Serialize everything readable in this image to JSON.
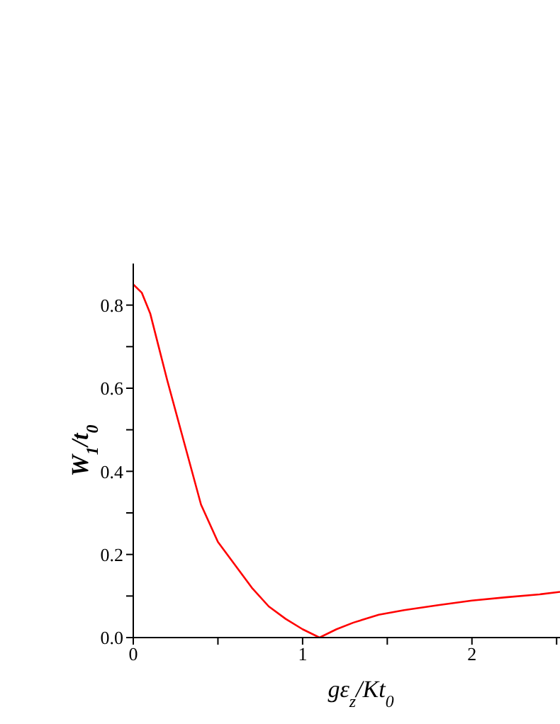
{
  "chart_data": {
    "type": "line",
    "xlabel": "gε$_{z}$/Kt$_{0}$",
    "ylabel": "W$_{1}$/t$_{0}$",
    "x": [
      0,
      0.05,
      0.1,
      0.15,
      0.2,
      0.3,
      0.4,
      0.5,
      0.6,
      0.7,
      0.8,
      0.9,
      1.0,
      1.1,
      1.2,
      1.3,
      1.45,
      1.6,
      1.8,
      2.0,
      2.2,
      2.4,
      2.52
    ],
    "series": [
      {
        "color": "#ff0000",
        "values": [
          0.85,
          0.83,
          0.78,
          0.7,
          0.62,
          0.47,
          0.32,
          0.23,
          0.175,
          0.12,
          0.075,
          0.045,
          0.02,
          0,
          0.02,
          0.036,
          0.055,
          0.066,
          0.078,
          0.089,
          0.097,
          0.104,
          0.11
        ]
      }
    ],
    "xlim": [
      0,
      2.52
    ],
    "ylim": [
      0,
      0.9
    ],
    "xticks": [
      0,
      {
        "value": 0.5,
        "label": null
      },
      1,
      {
        "value": 1.5,
        "label": null
      },
      2,
      {
        "value": 2.5,
        "label": null
      }
    ],
    "yticks": [
      "0.0",
      {
        "value": 0.1,
        "label": null
      },
      0.2,
      {
        "value": 0.3,
        "label": null
      },
      0.4,
      {
        "value": 0.5,
        "label": null
      },
      0.6,
      {
        "value": 0.7,
        "label": null
      },
      0.8
    ],
    "grid": false,
    "legend": false,
    "marker": "none",
    "line_style": "solid"
  }
}
